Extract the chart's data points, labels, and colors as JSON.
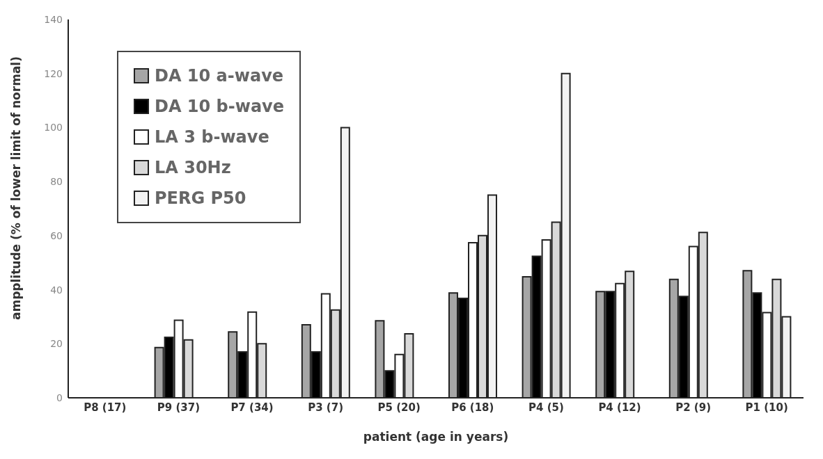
{
  "chart_data": {
    "type": "bar",
    "xlabel": "patient (age in years)",
    "ylabel": "ampplitude  (% of lower limit of normal)",
    "categories": [
      "P8 (17)",
      "P9 (37)",
      "P7 (34)",
      "P3 (7)",
      "P5 (20)",
      "P6 (18)",
      "P4 (5)",
      "P4 (12)",
      "P2 (9)",
      "P1 (10)"
    ],
    "series": [
      {
        "name": "DA 10 a-wave",
        "color": "#a6a6a6",
        "values": [
          null,
          18.6,
          24.4,
          27,
          28.5,
          38.8,
          44.8,
          39.3,
          43.8,
          47
        ]
      },
      {
        "name": "DA 10 b-wave",
        "color": "#000000",
        "values": [
          null,
          22.4,
          17,
          17,
          10,
          36.8,
          52.4,
          39.3,
          37.5,
          38.8
        ]
      },
      {
        "name": "LA 3 b-wave",
        "color": "#ffffff",
        "values": [
          null,
          28.7,
          31.7,
          38.5,
          16,
          57.4,
          58.4,
          42.3,
          56,
          31.5
        ]
      },
      {
        "name": "LA 30Hz",
        "color": "#d9d9d9",
        "values": [
          null,
          21.4,
          20,
          32.5,
          23.7,
          60,
          65,
          46.8,
          61.2,
          43.8
        ]
      },
      {
        "name": "PERG P50",
        "color": "#f2f2f2",
        "values": [
          null,
          null,
          null,
          100,
          null,
          75,
          120,
          null,
          null,
          30
        ]
      }
    ],
    "ylim": [
      0,
      140
    ],
    "yticks": [
      0,
      20,
      40,
      60,
      80,
      100,
      120,
      140
    ],
    "grid": false,
    "legend": "top left"
  }
}
